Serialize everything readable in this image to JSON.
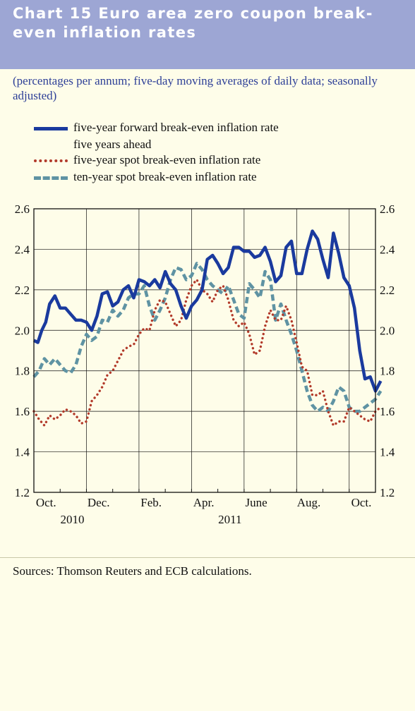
{
  "header": {
    "title": "Chart 15 Euro area zero coupon break-even inflation rates",
    "subtitle": "(percentages per annum; five-day moving averages of daily data; seasonally adjusted)"
  },
  "legend": [
    {
      "label_line1": "five-year forward break-even inflation rate",
      "label_line2": "five years ahead",
      "style": "solid",
      "color": "#1a3a9e"
    },
    {
      "label_line1": "five-year spot break-even inflation rate",
      "style": "dotted",
      "color": "#b23a2a"
    },
    {
      "label_line1": "ten-year spot break-even inflation rate",
      "style": "dashed",
      "color": "#5f93a3"
    }
  ],
  "sources": "Sources: Thomson Reuters and ECB calculations.",
  "chart_data": {
    "type": "line",
    "ylim": [
      1.2,
      2.6
    ],
    "yticks": [
      "1.2",
      "1.4",
      "1.6",
      "1.8",
      "2.0",
      "2.2",
      "2.4",
      "2.6"
    ],
    "x_month_labels": [
      "Oct.",
      "Dec.",
      "Feb.",
      "Apr.",
      "June",
      "Aug.",
      "Oct."
    ],
    "x_year_labels": [
      "2010",
      "2011"
    ],
    "x_index_range": [
      0,
      13
    ],
    "x_label_positions": [
      1,
      3,
      5,
      7,
      9,
      11,
      13
    ],
    "year_label_positions": [
      2,
      8
    ],
    "grid": true,
    "series": [
      {
        "name": "five-year forward break-even inflation rate five years ahead",
        "color": "#1a3a9e",
        "style": "solid",
        "x": [
          0.0,
          0.15,
          0.3,
          0.45,
          0.6,
          0.8,
          1.0,
          1.2,
          1.4,
          1.6,
          1.8,
          2.0,
          2.2,
          2.4,
          2.6,
          2.8,
          3.0,
          3.2,
          3.4,
          3.6,
          3.8,
          4.0,
          4.2,
          4.4,
          4.6,
          4.8,
          5.0,
          5.2,
          5.4,
          5.6,
          5.8,
          6.0,
          6.2,
          6.4,
          6.6,
          6.8,
          7.0,
          7.2,
          7.4,
          7.6,
          7.8,
          8.0,
          8.2,
          8.4,
          8.6,
          8.8,
          9.0,
          9.2,
          9.4,
          9.6,
          9.8,
          10.0,
          10.2,
          10.4,
          10.6,
          10.8,
          11.0,
          11.2,
          11.4,
          11.6,
          11.8,
          12.0,
          12.2,
          12.4,
          12.6,
          12.8,
          13.0,
          13.2
        ],
        "y": [
          1.95,
          1.94,
          2.0,
          2.04,
          2.13,
          2.17,
          2.11,
          2.11,
          2.08,
          2.05,
          2.05,
          2.04,
          2.0,
          2.07,
          2.18,
          2.19,
          2.12,
          2.14,
          2.2,
          2.22,
          2.16,
          2.25,
          2.24,
          2.22,
          2.25,
          2.21,
          2.29,
          2.23,
          2.2,
          2.12,
          2.06,
          2.12,
          2.15,
          2.2,
          2.35,
          2.37,
          2.33,
          2.28,
          2.31,
          2.41,
          2.41,
          2.39,
          2.39,
          2.36,
          2.37,
          2.41,
          2.34,
          2.24,
          2.27,
          2.41,
          2.44,
          2.28,
          2.28,
          2.4,
          2.49,
          2.45,
          2.35,
          2.26,
          2.48,
          2.38,
          2.26,
          2.22,
          2.11,
          1.9,
          1.76,
          1.77,
          1.7,
          1.75
        ]
      },
      {
        "name": "five-year spot break-even inflation rate",
        "color": "#b23a2a",
        "style": "dotted",
        "x": [
          0.0,
          0.2,
          0.4,
          0.6,
          0.8,
          1.0,
          1.2,
          1.4,
          1.6,
          1.8,
          2.0,
          2.2,
          2.4,
          2.6,
          2.8,
          3.0,
          3.2,
          3.4,
          3.6,
          3.8,
          4.0,
          4.2,
          4.4,
          4.6,
          4.8,
          5.0,
          5.2,
          5.4,
          5.6,
          5.8,
          6.0,
          6.2,
          6.4,
          6.6,
          6.8,
          7.0,
          7.2,
          7.4,
          7.6,
          7.8,
          8.0,
          8.2,
          8.4,
          8.6,
          8.8,
          9.0,
          9.2,
          9.4,
          9.6,
          9.8,
          10.0,
          10.2,
          10.4,
          10.6,
          10.8,
          11.0,
          11.2,
          11.4,
          11.6,
          11.8,
          12.0,
          12.2,
          12.4,
          12.6,
          12.8,
          13.0,
          13.2
        ],
        "y": [
          1.6,
          1.56,
          1.53,
          1.58,
          1.56,
          1.58,
          1.61,
          1.6,
          1.58,
          1.54,
          1.55,
          1.65,
          1.68,
          1.72,
          1.78,
          1.8,
          1.85,
          1.9,
          1.92,
          1.93,
          1.98,
          2.01,
          2.0,
          2.1,
          2.15,
          2.14,
          2.08,
          2.02,
          2.05,
          2.15,
          2.22,
          2.25,
          2.2,
          2.18,
          2.14,
          2.2,
          2.22,
          2.15,
          2.05,
          2.02,
          2.04,
          1.98,
          1.88,
          1.9,
          2.02,
          2.1,
          2.05,
          2.05,
          2.12,
          2.05,
          1.94,
          1.82,
          1.8,
          1.68,
          1.68,
          1.7,
          1.6,
          1.53,
          1.55,
          1.55,
          1.62,
          1.6,
          1.58,
          1.56,
          1.55,
          1.6,
          1.62
        ]
      },
      {
        "name": "ten-year spot break-even inflation rate",
        "color": "#5f93a3",
        "style": "dashed",
        "x": [
          0.0,
          0.2,
          0.4,
          0.6,
          0.8,
          1.0,
          1.2,
          1.4,
          1.6,
          1.8,
          2.0,
          2.2,
          2.4,
          2.6,
          2.8,
          3.0,
          3.2,
          3.4,
          3.6,
          3.8,
          4.0,
          4.2,
          4.4,
          4.6,
          4.8,
          5.0,
          5.2,
          5.4,
          5.6,
          5.8,
          6.0,
          6.2,
          6.4,
          6.6,
          6.8,
          7.0,
          7.2,
          7.4,
          7.6,
          7.8,
          8.0,
          8.2,
          8.4,
          8.6,
          8.8,
          9.0,
          9.2,
          9.4,
          9.6,
          9.8,
          10.0,
          10.2,
          10.4,
          10.6,
          10.8,
          11.0,
          11.2,
          11.4,
          11.6,
          11.8,
          12.0,
          12.2,
          12.4,
          12.6,
          12.8,
          13.0,
          13.2
        ],
        "y": [
          1.77,
          1.8,
          1.86,
          1.83,
          1.86,
          1.83,
          1.8,
          1.79,
          1.83,
          1.92,
          1.98,
          1.95,
          1.97,
          2.05,
          2.04,
          2.1,
          2.07,
          2.1,
          2.16,
          2.18,
          2.18,
          2.22,
          2.12,
          2.05,
          2.1,
          2.16,
          2.25,
          2.31,
          2.3,
          2.25,
          2.27,
          2.33,
          2.3,
          2.25,
          2.22,
          2.2,
          2.18,
          2.22,
          2.15,
          2.08,
          2.06,
          2.23,
          2.2,
          2.16,
          2.29,
          2.25,
          2.05,
          2.13,
          2.05,
          1.98,
          1.9,
          1.8,
          1.7,
          1.63,
          1.6,
          1.62,
          1.6,
          1.65,
          1.72,
          1.7,
          1.62,
          1.6,
          1.6,
          1.62,
          1.64,
          1.66,
          1.7
        ]
      }
    ]
  }
}
